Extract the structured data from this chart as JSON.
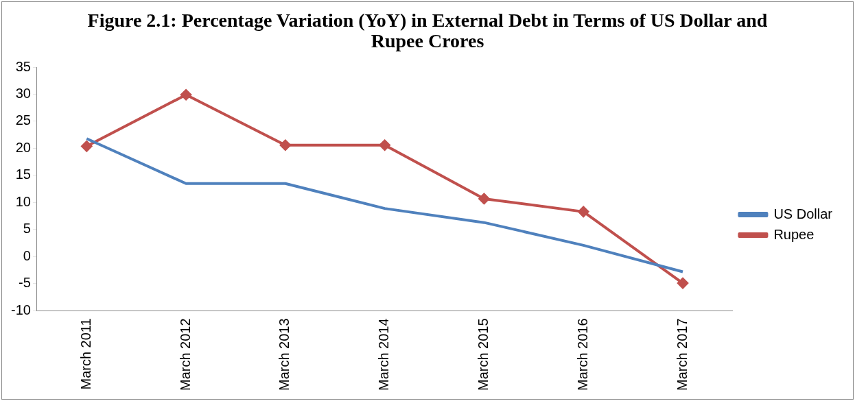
{
  "chart_data": {
    "type": "line",
    "title": "Figure 2.1: Percentage Variation (YoY) in External Debt in Terms of US Dollar and Rupee Crores",
    "categories": [
      "March 2011",
      "March 2012",
      "March 2013",
      "March 2014",
      "March 2015",
      "March 2016",
      "March 2017"
    ],
    "series": [
      {
        "name": "US Dollar",
        "color": "#4f81bd",
        "values": [
          21.8,
          13.5,
          13.5,
          8.9,
          6.3,
          2.1,
          -2.8
        ],
        "marker": "none"
      },
      {
        "name": "Rupee",
        "color": "#c0504d",
        "values": [
          20.4,
          29.9,
          20.6,
          20.6,
          10.7,
          8.3,
          -4.9
        ],
        "marker": "diamond"
      }
    ],
    "ylim": [
      -10,
      35
    ],
    "yticks": [
      -10,
      -5,
      0,
      5,
      10,
      15,
      20,
      25,
      30,
      35
    ],
    "grid": false,
    "legend": "right"
  }
}
